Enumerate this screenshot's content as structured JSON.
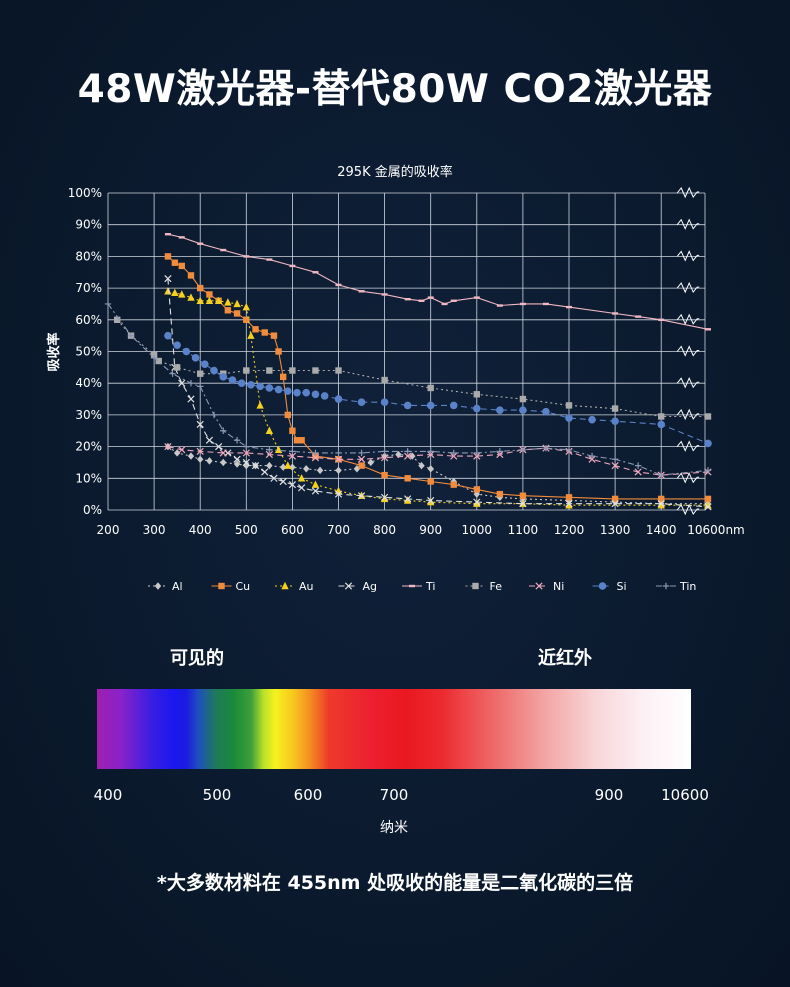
{
  "headline": "48W激光器-替代80W CO2激光器",
  "chart_data": {
    "type": "line",
    "title": "295K 金属的吸收率",
    "ylabel": "吸收率",
    "xlabel": "",
    "ylim": [
      0,
      100
    ],
    "yticks": [
      "0%",
      "10%",
      "20%",
      "30%",
      "40%",
      "50%",
      "60%",
      "70%",
      "80%",
      "90%",
      "100%"
    ],
    "xticks": [
      "200",
      "300",
      "400",
      "500",
      "600",
      "700",
      "800",
      "900",
      "1000",
      "1100",
      "1200",
      "1300",
      "1400",
      "10600nm"
    ],
    "grid": true,
    "axis_break": "between 1400 and 10600",
    "legend_position": "bottom",
    "series": [
      {
        "name": "Al",
        "color": "#c8c8c8",
        "marker": "diamond",
        "dash": "dot",
        "points": [
          [
            330,
            20
          ],
          [
            350,
            18
          ],
          [
            380,
            17
          ],
          [
            400,
            16
          ],
          [
            420,
            15.5
          ],
          [
            450,
            15
          ],
          [
            480,
            14.5
          ],
          [
            500,
            14
          ],
          [
            520,
            14
          ],
          [
            550,
            14
          ],
          [
            580,
            13.5
          ],
          [
            600,
            13.5
          ],
          [
            630,
            13
          ],
          [
            660,
            12.5
          ],
          [
            700,
            12.5
          ],
          [
            740,
            13
          ],
          [
            770,
            15
          ],
          [
            800,
            17
          ],
          [
            830,
            17.5
          ],
          [
            860,
            17
          ],
          [
            880,
            14
          ],
          [
            900,
            13
          ],
          [
            950,
            9
          ],
          [
            1000,
            5
          ],
          [
            1050,
            4
          ],
          [
            1100,
            3.5
          ],
          [
            1200,
            3
          ],
          [
            1300,
            2.5
          ],
          [
            1400,
            2
          ],
          [
            10600,
            2
          ]
        ]
      },
      {
        "name": "Cu",
        "color": "#f08c3c",
        "marker": "square",
        "dash": "solid",
        "points": [
          [
            330,
            80
          ],
          [
            345,
            78
          ],
          [
            360,
            77
          ],
          [
            380,
            74
          ],
          [
            400,
            70
          ],
          [
            420,
            68
          ],
          [
            440,
            66
          ],
          [
            460,
            63
          ],
          [
            480,
            62
          ],
          [
            500,
            60
          ],
          [
            520,
            57
          ],
          [
            540,
            56
          ],
          [
            560,
            55
          ],
          [
            570,
            50
          ],
          [
            580,
            42
          ],
          [
            590,
            30
          ],
          [
            600,
            25
          ],
          [
            610,
            22
          ],
          [
            620,
            22
          ],
          [
            650,
            17
          ],
          [
            700,
            16
          ],
          [
            750,
            14
          ],
          [
            800,
            11
          ],
          [
            850,
            10
          ],
          [
            900,
            9
          ],
          [
            950,
            8
          ],
          [
            1000,
            6.5
          ],
          [
            1050,
            5
          ],
          [
            1100,
            4.5
          ],
          [
            1200,
            4
          ],
          [
            1300,
            3.5
          ],
          [
            1400,
            3.5
          ],
          [
            10600,
            3.5
          ]
        ]
      },
      {
        "name": "Au",
        "color": "#f5d020",
        "marker": "triangle",
        "dash": "dot",
        "points": [
          [
            330,
            69
          ],
          [
            345,
            68.5
          ],
          [
            360,
            68
          ],
          [
            380,
            67
          ],
          [
            400,
            66
          ],
          [
            420,
            66
          ],
          [
            440,
            66
          ],
          [
            460,
            65.5
          ],
          [
            480,
            65
          ],
          [
            500,
            64
          ],
          [
            510,
            55
          ],
          [
            530,
            33
          ],
          [
            550,
            25
          ],
          [
            570,
            19
          ],
          [
            590,
            14
          ],
          [
            620,
            10
          ],
          [
            650,
            8
          ],
          [
            700,
            6
          ],
          [
            750,
            4.5
          ],
          [
            800,
            3.5
          ],
          [
            850,
            3
          ],
          [
            900,
            2.5
          ],
          [
            1000,
            2
          ],
          [
            1100,
            2
          ],
          [
            1200,
            1.5
          ],
          [
            1400,
            1.5
          ],
          [
            10600,
            1.5
          ]
        ]
      },
      {
        "name": "Ag",
        "color": "#e0e0e0",
        "marker": "x",
        "dash": "dash",
        "points": [
          [
            330,
            73
          ],
          [
            345,
            45
          ],
          [
            360,
            40
          ],
          [
            380,
            35
          ],
          [
            400,
            27
          ],
          [
            420,
            22
          ],
          [
            440,
            20
          ],
          [
            460,
            18
          ],
          [
            480,
            16
          ],
          [
            500,
            15
          ],
          [
            520,
            14
          ],
          [
            540,
            12
          ],
          [
            560,
            10
          ],
          [
            580,
            9
          ],
          [
            600,
            8
          ],
          [
            620,
            7
          ],
          [
            650,
            6
          ],
          [
            700,
            5
          ],
          [
            750,
            4.5
          ],
          [
            800,
            4
          ],
          [
            850,
            3.5
          ],
          [
            900,
            3
          ],
          [
            1000,
            2.5
          ],
          [
            1100,
            2
          ],
          [
            1200,
            2
          ],
          [
            1300,
            2
          ],
          [
            1400,
            2
          ],
          [
            10600,
            1
          ]
        ]
      },
      {
        "name": "Ti",
        "color": "#f2b8c2",
        "marker": "dash",
        "dash": "solid",
        "points": [
          [
            330,
            87
          ],
          [
            360,
            86
          ],
          [
            400,
            84
          ],
          [
            450,
            82
          ],
          [
            500,
            80
          ],
          [
            550,
            79
          ],
          [
            600,
            77
          ],
          [
            650,
            75
          ],
          [
            700,
            71
          ],
          [
            750,
            69
          ],
          [
            800,
            68
          ],
          [
            850,
            66.5
          ],
          [
            880,
            66
          ],
          [
            900,
            67
          ],
          [
            930,
            65
          ],
          [
            950,
            66
          ],
          [
            1000,
            67
          ],
          [
            1050,
            64.5
          ],
          [
            1100,
            65
          ],
          [
            1150,
            65
          ],
          [
            1200,
            64
          ],
          [
            1300,
            62
          ],
          [
            1350,
            61
          ],
          [
            1400,
            60
          ],
          [
            10600,
            57
          ]
        ]
      },
      {
        "name": "Fe",
        "color": "#aaaaaa",
        "marker": "square",
        "dash": "dot",
        "points": [
          [
            220,
            60
          ],
          [
            250,
            55
          ],
          [
            300,
            49
          ],
          [
            310,
            47
          ],
          [
            350,
            45
          ],
          [
            400,
            43
          ],
          [
            450,
            43
          ],
          [
            500,
            44
          ],
          [
            550,
            44
          ],
          [
            600,
            44
          ],
          [
            650,
            44
          ],
          [
            700,
            44
          ],
          [
            800,
            41
          ],
          [
            900,
            38.5
          ],
          [
            1000,
            36.5
          ],
          [
            1100,
            35
          ],
          [
            1200,
            33
          ],
          [
            1300,
            32
          ],
          [
            1400,
            29.5
          ],
          [
            10600,
            29.5
          ]
        ]
      },
      {
        "name": "Ni",
        "color": "#f2a8bc",
        "marker": "x",
        "dash": "dash",
        "points": [
          [
            330,
            20
          ],
          [
            360,
            19
          ],
          [
            400,
            18.5
          ],
          [
            450,
            18
          ],
          [
            500,
            18
          ],
          [
            550,
            17.5
          ],
          [
            600,
            17
          ],
          [
            650,
            16.5
          ],
          [
            700,
            16
          ],
          [
            750,
            16
          ],
          [
            800,
            16.5
          ],
          [
            850,
            17
          ],
          [
            900,
            17.5
          ],
          [
            950,
            17
          ],
          [
            1000,
            17
          ],
          [
            1050,
            17.5
          ],
          [
            1100,
            19
          ],
          [
            1150,
            19.5
          ],
          [
            1200,
            18.5
          ],
          [
            1250,
            16
          ],
          [
            1300,
            14
          ],
          [
            1350,
            12
          ],
          [
            1400,
            11
          ],
          [
            10600,
            12
          ]
        ]
      },
      {
        "name": "Si",
        "color": "#5a82c8",
        "marker": "circle",
        "dash": "dash",
        "points": [
          [
            330,
            55
          ],
          [
            350,
            52
          ],
          [
            370,
            50
          ],
          [
            390,
            48
          ],
          [
            410,
            46
          ],
          [
            430,
            44
          ],
          [
            450,
            42
          ],
          [
            470,
            41
          ],
          [
            490,
            40
          ],
          [
            510,
            39.5
          ],
          [
            530,
            39
          ],
          [
            550,
            38.5
          ],
          [
            570,
            38
          ],
          [
            590,
            37.5
          ],
          [
            610,
            37
          ],
          [
            630,
            37
          ],
          [
            650,
            36.5
          ],
          [
            670,
            36
          ],
          [
            700,
            35
          ],
          [
            750,
            34
          ],
          [
            800,
            34
          ],
          [
            850,
            33
          ],
          [
            900,
            33
          ],
          [
            950,
            33
          ],
          [
            1000,
            32
          ],
          [
            1050,
            31.5
          ],
          [
            1100,
            31.5
          ],
          [
            1150,
            31
          ],
          [
            1200,
            29
          ],
          [
            1250,
            28.5
          ],
          [
            1300,
            28
          ],
          [
            1400,
            27
          ],
          [
            10600,
            21
          ]
        ]
      },
      {
        "name": "Tin",
        "color": "#8c98b4",
        "marker": "plus",
        "dash": "dashdot",
        "points": [
          [
            200,
            65
          ],
          [
            250,
            55
          ],
          [
            300,
            48
          ],
          [
            340,
            43
          ],
          [
            380,
            40
          ],
          [
            400,
            39
          ],
          [
            430,
            30
          ],
          [
            450,
            25
          ],
          [
            480,
            22
          ],
          [
            500,
            20
          ],
          [
            550,
            19
          ],
          [
            600,
            18.5
          ],
          [
            650,
            18
          ],
          [
            700,
            18
          ],
          [
            750,
            18
          ],
          [
            800,
            18.5
          ],
          [
            850,
            18.5
          ],
          [
            900,
            18.5
          ],
          [
            950,
            18
          ],
          [
            1000,
            18
          ],
          [
            1050,
            18.5
          ],
          [
            1100,
            19
          ],
          [
            1150,
            19.5
          ],
          [
            1200,
            19
          ],
          [
            1250,
            17
          ],
          [
            1300,
            16
          ],
          [
            1350,
            14
          ],
          [
            1400,
            11
          ],
          [
            10600,
            12.5
          ]
        ]
      }
    ]
  },
  "spectrum": {
    "label_visible": "可见的",
    "label_nir": "近红外",
    "ticks": [
      "400",
      "500",
      "600",
      "700",
      "900",
      "10600"
    ],
    "unit": "纳米"
  },
  "footnote": "*大多数材料在 455nm 处吸收的能量是二氧化碳的三倍"
}
